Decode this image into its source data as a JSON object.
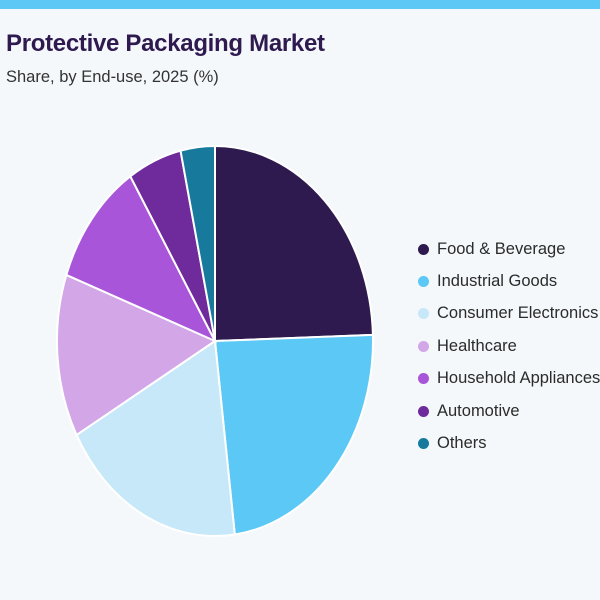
{
  "header": {
    "title": "Protective Packaging Market",
    "subtitle": "Share, by End-use, 2025 (%)"
  },
  "colors": {
    "accent_bar": "#5bc8f5",
    "title": "#2e1a4f"
  },
  "chart_data": {
    "type": "pie",
    "title": "Protective Packaging Market",
    "subtitle": "Share, by End-use, 2025 (%)",
    "legend_position": "right",
    "slices": [
      {
        "label": "Food & Beverage",
        "value": 24.5,
        "color": "#2e1a4f"
      },
      {
        "label": "Industrial Goods",
        "value": 23.5,
        "color": "#5bc8f5"
      },
      {
        "label": "Consumer Electronics",
        "value": 19.0,
        "color": "#c6e8f8"
      },
      {
        "label": "Healthcare",
        "value": 13.5,
        "color": "#d3a6e8"
      },
      {
        "label": "Household Appliances",
        "value": 10.5,
        "color": "#a855d9"
      },
      {
        "label": "Automotive",
        "value": 5.5,
        "color": "#6f2a9b"
      },
      {
        "label": "Others",
        "value": 3.5,
        "color": "#177a9c"
      }
    ]
  }
}
